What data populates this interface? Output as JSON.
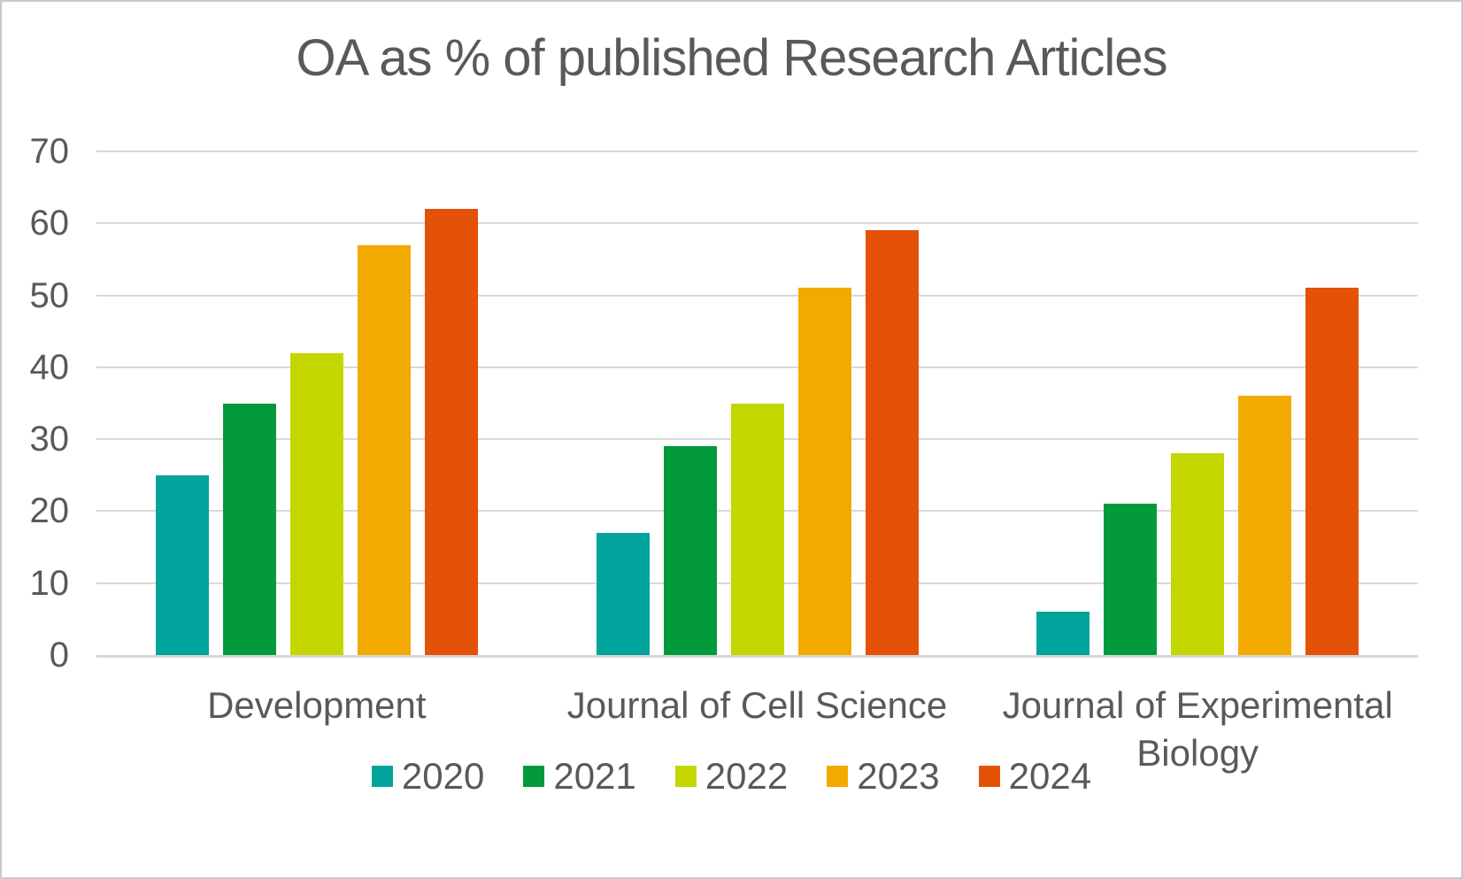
{
  "title": "OA as % of published Research Articles",
  "colors": {
    "text": "#595959",
    "gridline": "#D9D9D9",
    "axis_line": "#D6D6D6",
    "border": "#C9C9C9",
    "background": "#FFFFFF"
  },
  "chart_data": {
    "type": "bar",
    "title": "OA as % of published Research Articles",
    "categories": [
      "Development",
      "Journal of Cell Science",
      "Journal of Experimental Biology"
    ],
    "series": [
      {
        "name": "2020",
        "color": "#00A49C",
        "values": [
          25,
          17,
          6
        ]
      },
      {
        "name": "2021",
        "color": "#029A3B",
        "values": [
          35,
          29,
          21
        ]
      },
      {
        "name": "2022",
        "color": "#C4D600",
        "values": [
          42,
          35,
          28
        ]
      },
      {
        "name": "2023",
        "color": "#F2AA00",
        "values": [
          57,
          51,
          36
        ]
      },
      {
        "name": "2024",
        "color": "#E35206",
        "values": [
          62,
          59,
          51
        ]
      }
    ],
    "xlabel": "",
    "ylabel": "",
    "ylim": [
      0,
      70
    ],
    "ytick_step": 10,
    "ytick_labels": [
      "0",
      "10",
      "20",
      "30",
      "40",
      "50",
      "60",
      "70"
    ],
    "grid": true,
    "legend_position": "bottom"
  }
}
